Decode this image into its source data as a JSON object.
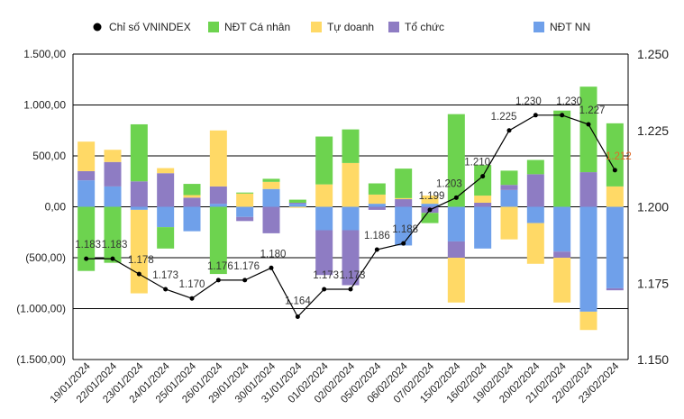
{
  "chart_data": {
    "type": "bar",
    "subtype": "stacked-bar-with-line",
    "categories": [
      "19/01/2024",
      "22/01/2024",
      "23/01/2024",
      "24/01/2024",
      "25/01/2024",
      "26/01/2024",
      "29/01/2024",
      "30/01/2024",
      "31/01/2024",
      "01/02/2024",
      "02/02/2024",
      "05/02/2024",
      "06/02/2024",
      "07/02/2024",
      "15/02/2024",
      "16/02/2024",
      "19/02/2024",
      "20/02/2024",
      "21/02/2024",
      "22/02/2024",
      "23/02/2024"
    ],
    "series": [
      {
        "name": "NĐT NN",
        "color": "#6fa0ea",
        "axis": "left",
        "kind": "bar",
        "values": [
          260,
          200,
          -30,
          -200,
          -240,
          30,
          -100,
          175,
          30,
          -230,
          -230,
          30,
          -380,
          30,
          -340,
          -410,
          165,
          -160,
          -440,
          -1030,
          -800
        ]
      },
      {
        "name": "Tổ chức",
        "color": "#8e7cc3",
        "axis": "left",
        "kind": "bar",
        "values": [
          90,
          240,
          250,
          330,
          90,
          170,
          -40,
          -260,
          10,
          -440,
          -540,
          -30,
          75,
          -60,
          -160,
          40,
          50,
          320,
          -60,
          340,
          -20
        ]
      },
      {
        "name": "Tự doanh",
        "color": "#ffd966",
        "axis": "left",
        "kind": "bar",
        "values": [
          290,
          120,
          -820,
          50,
          25,
          550,
          130,
          70,
          -10,
          220,
          430,
          90,
          10,
          80,
          -440,
          70,
          -320,
          -400,
          -440,
          -180,
          200
        ]
      },
      {
        "name": "NĐT Cá nhân",
        "color": "#6dd34f",
        "axis": "left",
        "kind": "bar",
        "values": [
          -630,
          -550,
          560,
          -210,
          110,
          -660,
          10,
          30,
          30,
          470,
          330,
          110,
          290,
          -100,
          910,
          300,
          140,
          140,
          945,
          840,
          620
        ]
      },
      {
        "name": "Chỉ số VNINDEX",
        "color": "#000000",
        "axis": "right",
        "kind": "line",
        "values": [
          1183,
          1183,
          1178,
          1173,
          1170,
          1176,
          1176,
          1180,
          1164,
          1173,
          1173,
          1186,
          1188,
          1199,
          1203,
          1210,
          1225,
          1230,
          1230,
          1227,
          1212
        ],
        "labels": [
          "1.183",
          "1.183",
          "1.178",
          "1.173",
          "1.170",
          "1.176",
          "1.176",
          "1.180",
          "1.164",
          "1.173",
          "1.173",
          "1.186",
          "1.188",
          "1.199",
          "1.203",
          "1.210",
          "1.225",
          "1.230",
          "1.230",
          "1.227",
          "1.212"
        ]
      }
    ],
    "legend_order": [
      "Chỉ số VNINDEX",
      "NĐT Cá nhân",
      "Tự doanh",
      "Tổ chức",
      "NĐT NN"
    ],
    "legend_position": "top",
    "y_left": {
      "min": -1500,
      "max": 1500,
      "ticks": [
        1500,
        1000,
        500,
        0,
        -500,
        -1000,
        -1500
      ],
      "tick_labels": [
        "1.500,00",
        "1.000,00",
        "500,00",
        "0,00",
        "(500,00)",
        "(1.000,00)",
        "(1.500,00)"
      ]
    },
    "y_right": {
      "min": 1150,
      "max": 1250,
      "ticks": [
        1250,
        1225,
        1200,
        1175,
        1150
      ],
      "tick_labels": [
        "1.250",
        "1.225",
        "1.200",
        "1.175",
        "1.150"
      ]
    },
    "grid": true,
    "highlight_last_label_color": "#e06c2b"
  }
}
